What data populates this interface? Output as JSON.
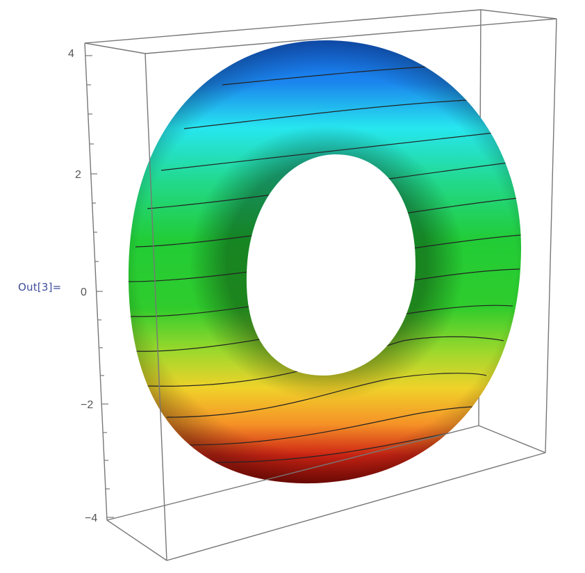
{
  "output_cell": {
    "label": "Out[3]="
  },
  "plot": {
    "axis": {
      "ticks": [
        "4",
        "2",
        "0",
        "−2",
        "−4"
      ]
    },
    "colors": {
      "band_top": "#1565e8",
      "band_cyan": "#27e6ef",
      "band_green": "#22cc36",
      "band_yellow": "#f0d22a",
      "band_orange": "#f59227",
      "band_red": "#ce2414",
      "band_bottom": "#8d0a05",
      "box_edges": "#777777",
      "contour_lines": "#222222"
    }
  }
}
